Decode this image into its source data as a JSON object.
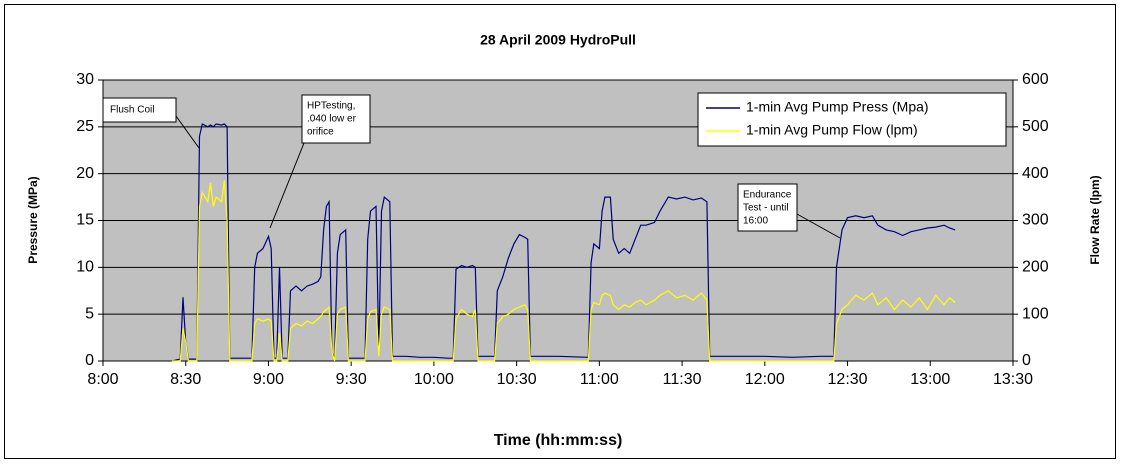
{
  "chart_data": {
    "type": "line",
    "title": "28 April 2009 HydroPull",
    "xlabel": "Time (hh:mm:ss)",
    "ylabel": "Pressure (MPa)",
    "y2label": "Flow Rate (lpm)",
    "xlim": [
      "8:00",
      "13:30"
    ],
    "xticks": [
      "8:00",
      "8:30",
      "9:00",
      "9:30",
      "10:00",
      "10:30",
      "11:00",
      "11:30",
      "12:00",
      "12:30",
      "13:00",
      "13:30"
    ],
    "ylim": [
      0,
      30
    ],
    "yticks": [
      0,
      5,
      10,
      15,
      20,
      25,
      30
    ],
    "y2lim": [
      0,
      600
    ],
    "y2ticks": [
      0,
      100,
      200,
      300,
      400,
      500,
      600
    ],
    "grid": true,
    "legend": "upper right",
    "x": [
      "8:25",
      "8:28",
      "8:29",
      "8:30",
      "8:31",
      "8:34",
      "8:35",
      "8:36",
      "8:38",
      "8:39",
      "8:40",
      "8:41",
      "8:43",
      "8:44",
      "8:45",
      "8:46",
      "8:50",
      "8:54",
      "8:55",
      "8:56",
      "8:58",
      "9:00",
      "9:01",
      "9:02",
      "9:03",
      "9:04",
      "9:05",
      "9:07",
      "9:08",
      "9:10",
      "9:12",
      "9:14",
      "9:16",
      "9:18",
      "9:19",
      "9:20",
      "9:21",
      "9:22",
      "9:23",
      "9:24",
      "9:25",
      "9:26",
      "9:28",
      "9:29",
      "9:35",
      "9:36",
      "9:37",
      "9:39",
      "9:40",
      "9:41",
      "9:42",
      "9:44",
      "9:45",
      "9:50",
      "9:55",
      "10:00",
      "10:05",
      "10:07",
      "10:08",
      "10:10",
      "10:12",
      "10:14",
      "10:15",
      "10:16",
      "10:22",
      "10:23",
      "10:25",
      "10:27",
      "10:29",
      "10:31",
      "10:33",
      "10:34",
      "10:35",
      "10:45",
      "10:56",
      "10:57",
      "10:58",
      "11:00",
      "11:01",
      "11:02",
      "11:04",
      "11:05",
      "11:07",
      "11:09",
      "11:11",
      "11:13",
      "11:15",
      "11:17",
      "11:20",
      "11:22",
      "11:25",
      "11:28",
      "11:31",
      "11:34",
      "11:37",
      "11:39",
      "11:40",
      "11:50",
      "12:00",
      "12:10",
      "12:20",
      "12:25",
      "12:26",
      "12:28",
      "12:30",
      "12:33",
      "12:36",
      "12:39",
      "12:41",
      "12:44",
      "12:47",
      "12:50",
      "12:53",
      "12:56",
      "12:59",
      "13:02",
      "13:05",
      "13:07",
      "13:09"
    ],
    "series": [
      {
        "name": "1-min Avg Pump Press (Mpa)",
        "color": "#000080",
        "values": [
          0,
          0.2,
          6.8,
          2,
          0.2,
          0.2,
          24,
          25.3,
          25,
          25.2,
          25,
          25.3,
          25.2,
          25.3,
          25,
          0.3,
          0.3,
          0.3,
          10,
          11.5,
          12,
          13.3,
          12,
          0.3,
          0.3,
          10,
          0.3,
          0.3,
          7.5,
          8,
          7.5,
          8,
          8.2,
          8.5,
          9,
          14,
          16.5,
          17,
          1,
          0.3,
          11.5,
          13.5,
          14,
          0.3,
          0.3,
          13,
          16,
          16.5,
          1,
          16,
          17.5,
          17,
          0.5,
          0.5,
          0.4,
          0.4,
          0.3,
          0.3,
          9.8,
          10.2,
          10,
          10.2,
          10,
          0.5,
          0.5,
          7.5,
          9,
          11,
          12.5,
          13.5,
          13.2,
          13,
          0.5,
          0.5,
          0.4,
          10.5,
          12.5,
          12,
          16,
          17.5,
          17.5,
          13,
          11.5,
          12,
          11.5,
          13,
          14.5,
          14.5,
          14.8,
          16,
          17.5,
          17.3,
          17.5,
          17.2,
          17.4,
          17,
          0.5,
          0.5,
          0.5,
          0.4,
          0.5,
          0.5,
          10,
          14,
          15.3,
          15.5,
          15.3,
          15.5,
          14.5,
          14,
          13.8,
          13.4,
          13.8,
          14,
          14.2,
          14.3,
          14.5,
          14.2,
          14
        ]
      },
      {
        "name": "1-min Avg Pump Flow (lpm)",
        "color": "#ffff00",
        "axis": "y2",
        "values": [
          0,
          0,
          70,
          40,
          0,
          0,
          330,
          360,
          340,
          380,
          330,
          350,
          340,
          386,
          300,
          0,
          0,
          0,
          80,
          90,
          85,
          90,
          85,
          0,
          0,
          60,
          0,
          0,
          70,
          80,
          75,
          85,
          80,
          90,
          95,
          105,
          110,
          115,
          20,
          0,
          100,
          110,
          115,
          0,
          0,
          90,
          105,
          110,
          10,
          100,
          115,
          110,
          0,
          0,
          0,
          0,
          0,
          0,
          90,
          110,
          100,
          95,
          110,
          0,
          0,
          80,
          95,
          100,
          110,
          115,
          120,
          110,
          0,
          0,
          0,
          110,
          125,
          120,
          140,
          145,
          140,
          120,
          110,
          120,
          115,
          125,
          130,
          120,
          130,
          140,
          150,
          135,
          140,
          130,
          145,
          130,
          0,
          0,
          0,
          0,
          0,
          0,
          80,
          110,
          120,
          140,
          130,
          145,
          120,
          135,
          110,
          130,
          115,
          135,
          110,
          140,
          120,
          135,
          125
        ]
      }
    ],
    "annotations": [
      {
        "lines": [
          "Flush Coil"
        ]
      },
      {
        "lines": [
          "HPTesting,",
          ".040 low er",
          "orifice"
        ]
      },
      {
        "lines": [
          "Endurance",
          "Test - until",
          "16:00"
        ]
      }
    ]
  }
}
